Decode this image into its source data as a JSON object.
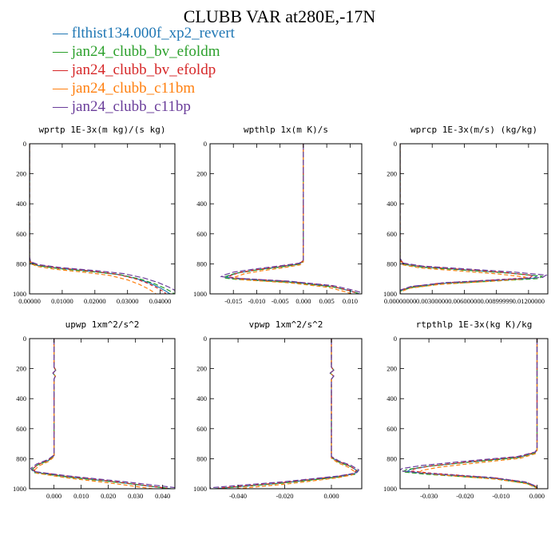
{
  "title": "CLUBB VAR at280E,-17N",
  "legend": [
    {
      "label": "flthist134.000f_xp2_revert",
      "color": "#1f77b4"
    },
    {
      "label": "jan24_clubb_bv_efoldm",
      "color": "#2ca02c"
    },
    {
      "label": "jan24_clubb_bv_efoldp",
      "color": "#d62728"
    },
    {
      "label": "jan24_clubb_c11bm",
      "color": "#ff7f0e"
    },
    {
      "label": "jan24_clubb_c11bp",
      "color": "#6a3d9a"
    }
  ],
  "legend_dash": "—",
  "chart_data": [
    {
      "type": "line",
      "title": "wprtp  1E-3x(m kg)/(s kg)",
      "xlim": [
        0,
        0.0445
      ],
      "ylim": [
        1000,
        0
      ],
      "xticks": [
        0,
        0.01,
        0.02,
        0.03,
        0.04
      ],
      "xtick_labels": [
        "0.00000",
        "0.01000",
        "0.02000",
        "0.03000",
        "0.04000"
      ],
      "yticks": [
        0,
        200,
        400,
        600,
        800,
        1000
      ],
      "ytick_labels": [
        "0",
        "200",
        "400",
        "600",
        "800",
        "1000"
      ],
      "series": [
        {
          "y": [
            0,
            760,
            790,
            810,
            830,
            850,
            870,
            900,
            930,
            960,
            985,
            1000
          ],
          "x": [
            0,
            0,
            0.0003,
            0.0025,
            0.009,
            0.019,
            0.027,
            0.033,
            0.037,
            0.04,
            0.042,
            0.043
          ]
        }
      ]
    },
    {
      "type": "line",
      "title": "wpthlp  1x(m K)/s",
      "xlim": [
        -0.02,
        0.0125
      ],
      "ylim": [
        1000,
        0
      ],
      "xticks": [
        -0.015,
        -0.01,
        -0.005,
        0,
        0.005,
        0.01
      ],
      "xtick_labels": [
        "-0.015",
        "-0.010",
        "-0.005",
        "0.000",
        "0.005",
        "0.010"
      ],
      "yticks": [
        0,
        200,
        400,
        600,
        800,
        1000
      ],
      "ytick_labels": [
        "0",
        "200",
        "400",
        "600",
        "800",
        "1000"
      ],
      "series": [
        {
          "y": [
            0,
            780,
            800,
            820,
            840,
            860,
            880,
            890,
            900,
            920,
            950,
            980,
            1000
          ],
          "x": [
            0,
            0,
            -0.0008,
            -0.005,
            -0.01,
            -0.014,
            -0.016,
            -0.0165,
            -0.014,
            -0.003,
            0.006,
            0.01,
            0.012
          ]
        }
      ]
    },
    {
      "type": "line",
      "title": "wprcp  1E-3x(m/s) (kg/kg)",
      "xlim": [
        0,
        0.0138
      ],
      "ylim": [
        1000,
        0
      ],
      "xticks": [
        0,
        0.003,
        0.006,
        0.009,
        0.012
      ],
      "xtick_labels": [
        "0.00000000",
        "0.00300000",
        "0.00600000",
        "0.00899999",
        "0.01200000"
      ],
      "yticks": [
        0,
        200,
        400,
        600,
        800,
        1000
      ],
      "ytick_labels": [
        "0",
        "200",
        "400",
        "600",
        "800",
        "1000"
      ],
      "series": [
        {
          "y": [
            0,
            770,
            800,
            820,
            840,
            860,
            880,
            895,
            910,
            930,
            955,
            980,
            1000
          ],
          "x": [
            0,
            0,
            0.0003,
            0.002,
            0.006,
            0.01,
            0.0128,
            0.0125,
            0.009,
            0.004,
            0.001,
            0,
            0
          ]
        }
      ]
    },
    {
      "type": "line",
      "title": "upwp  1xm^2/s^2",
      "xlim": [
        -0.009,
        0.0445
      ],
      "ylim": [
        1000,
        0
      ],
      "xticks": [
        0,
        0.01,
        0.02,
        0.03,
        0.04
      ],
      "xtick_labels": [
        "0.000",
        "0.010",
        "0.020",
        "0.030",
        "0.040"
      ],
      "yticks": [
        0,
        200,
        400,
        600,
        800,
        1000
      ],
      "ytick_labels": [
        "0",
        "200",
        "400",
        "600",
        "800",
        "1000"
      ],
      "series": [
        {
          "y": [
            0,
            190,
            210,
            230,
            250,
            270,
            780,
            810,
            840,
            870,
            890,
            920,
            960,
            1000
          ],
          "x": [
            0,
            0,
            0.0006,
            -0.0004,
            0.0005,
            0,
            0,
            -0.002,
            -0.006,
            -0.008,
            -0.007,
            0.005,
            0.025,
            0.043
          ]
        }
      ]
    },
    {
      "type": "line",
      "title": "vpwp  1xm^2/s^2",
      "xlim": [
        -0.052,
        0.013
      ],
      "ylim": [
        1000,
        0
      ],
      "xticks": [
        -0.04,
        -0.02,
        0
      ],
      "xtick_labels": [
        "-0.040",
        "-0.020",
        "0.000"
      ],
      "yticks": [
        0,
        200,
        400,
        600,
        800,
        1000
      ],
      "ytick_labels": [
        "0",
        "200",
        "400",
        "600",
        "800",
        "1000"
      ],
      "series": [
        {
          "y": [
            0,
            190,
            210,
            230,
            250,
            270,
            790,
            820,
            850,
            880,
            900,
            920,
            960,
            1000
          ],
          "x": [
            0,
            0,
            0.001,
            -0.0005,
            0.001,
            0,
            0,
            0.003,
            0.008,
            0.011,
            0.01,
            0.003,
            -0.02,
            -0.05
          ]
        }
      ]
    },
    {
      "type": "line",
      "title": "rtpthlp  1E-3x(kg K)/kg",
      "xlim": [
        -0.038,
        0.003
      ],
      "ylim": [
        1000,
        0
      ],
      "xticks": [
        -0.03,
        -0.02,
        -0.01,
        0
      ],
      "xtick_labels": [
        "-0.030",
        "-0.020",
        "-0.010",
        "0.000"
      ],
      "yticks": [
        0,
        200,
        400,
        600,
        800,
        1000
      ],
      "ytick_labels": [
        "0",
        "200",
        "400",
        "600",
        "800",
        "1000"
      ],
      "series": [
        {
          "y": [
            0,
            740,
            760,
            790,
            820,
            850,
            870,
            885,
            900,
            930,
            960,
            990,
            1000
          ],
          "x": [
            0,
            0,
            -0.0005,
            -0.005,
            -0.018,
            -0.03,
            -0.035,
            -0.036,
            -0.03,
            -0.012,
            -0.003,
            0,
            0
          ]
        }
      ]
    }
  ]
}
